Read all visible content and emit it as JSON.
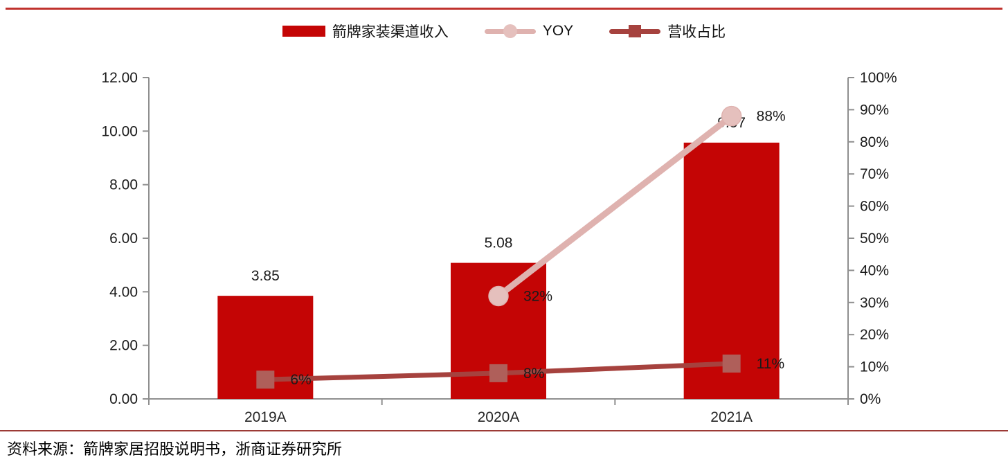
{
  "page": {
    "source_note": "资料来源：箭牌家居招股说明书，浙商证券研究所"
  },
  "colors": {
    "top_rule": "#C0322D",
    "separator": "#9C3A36",
    "axis": "#8F8F8F"
  },
  "legend": [
    {
      "label": "箭牌家装渠道收入",
      "type": "bar",
      "color": "#C40505"
    },
    {
      "label": "YOY",
      "type": "line-circle",
      "color": "#DFB2AF",
      "marker_fill": "#E5C0BD"
    },
    {
      "label": "营收占比",
      "type": "line-square",
      "color": "#A6423E",
      "marker_fill": "#AF5F5A"
    }
  ],
  "chart_data": {
    "type": "combo-bar-line",
    "categories": [
      "2019A",
      "2020A",
      "2021A"
    ],
    "series": [
      {
        "name": "箭牌家装渠道收入",
        "type": "bar",
        "axis": "left",
        "values": [
          3.85,
          5.08,
          9.57
        ],
        "labels": [
          "3.85",
          "5.08",
          "9.57"
        ],
        "color": "#C40505"
      },
      {
        "name": "YOY",
        "type": "line",
        "marker": "circle",
        "axis": "right",
        "values": [
          null,
          32,
          88
        ],
        "labels": [
          null,
          "32%",
          "88%"
        ],
        "color": "#DFB2AF",
        "marker_fill": "#E5C0BD"
      },
      {
        "name": "营收占比",
        "type": "line",
        "marker": "square",
        "axis": "right",
        "values": [
          6,
          8,
          11
        ],
        "labels": [
          "6%",
          "8%",
          "11%"
        ],
        "color": "#A6423E",
        "marker_fill": "#AF5F5A"
      }
    ],
    "left_axis": {
      "min": 0,
      "max": 12,
      "step": 2,
      "ticks": [
        "0.00",
        "2.00",
        "4.00",
        "6.00",
        "8.00",
        "10.00",
        "12.00"
      ]
    },
    "right_axis": {
      "min": 0,
      "max": 100,
      "step": 10,
      "ticks": [
        "0%",
        "10%",
        "20%",
        "30%",
        "40%",
        "50%",
        "60%",
        "70%",
        "80%",
        "90%",
        "100%"
      ]
    },
    "grid": false,
    "legend_position": "top",
    "title": ""
  }
}
